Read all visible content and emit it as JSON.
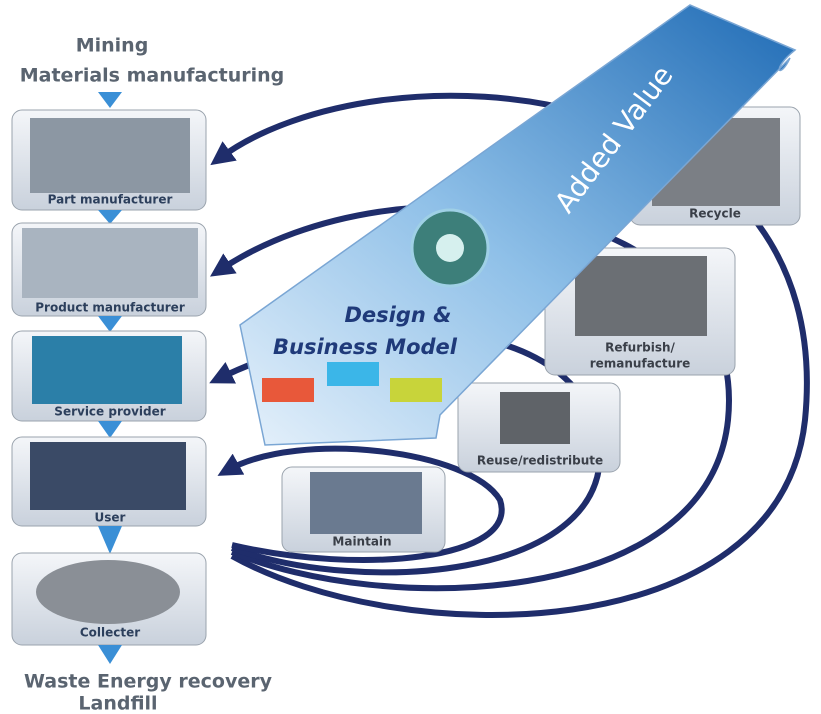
{
  "header": {
    "lines": [
      "Mining",
      "Materials manufacturing"
    ]
  },
  "stages": [
    {
      "label": "Part manufacturer"
    },
    {
      "label": "Product manufacturer"
    },
    {
      "label": "Service provider"
    },
    {
      "label": "User"
    },
    {
      "label": "Collecter"
    }
  ],
  "footer": {
    "lines": [
      "Waste Energy recovery",
      "Landfill"
    ]
  },
  "loops": [
    {
      "label": [
        "Recycle"
      ]
    },
    {
      "label": [
        "Refurbish/",
        "remanufacture"
      ]
    },
    {
      "label": [
        "Reuse/redistribute"
      ]
    },
    {
      "label": [
        "Maintain"
      ]
    }
  ],
  "design": {
    "lines": [
      "Design &",
      "Business Model"
    ]
  },
  "added_value": "Added Value"
}
